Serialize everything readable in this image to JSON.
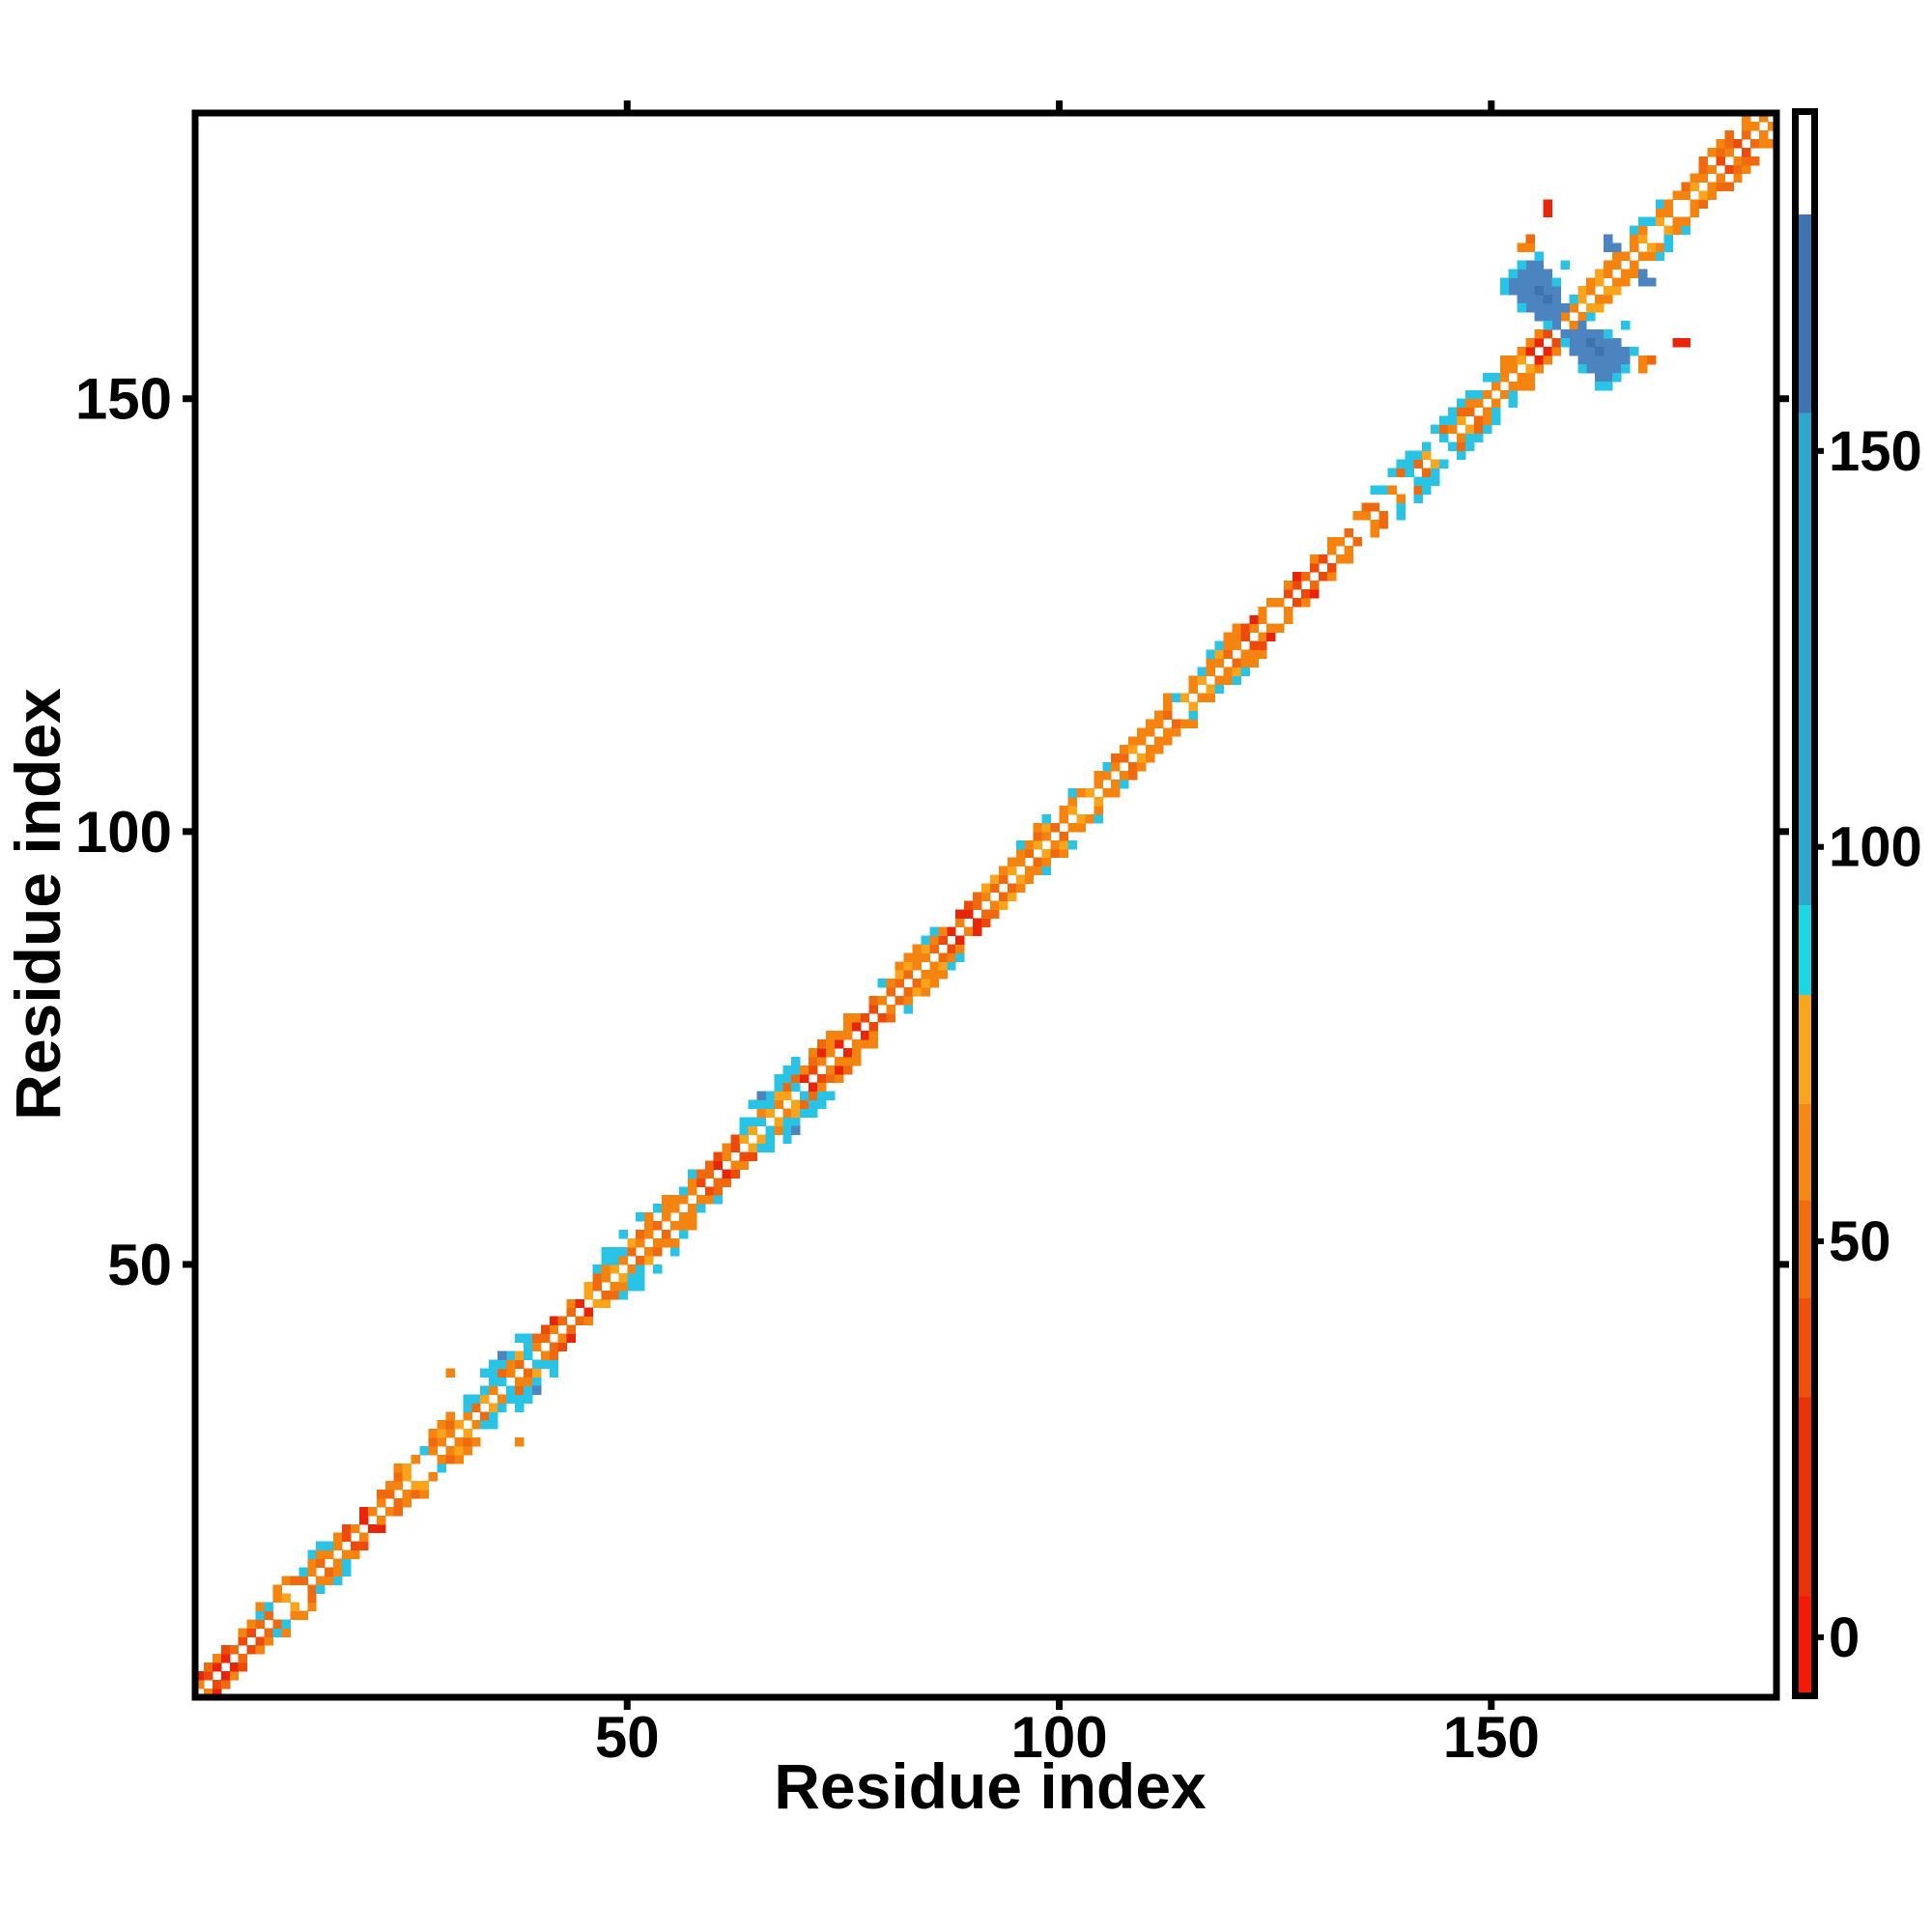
{
  "page": {
    "background": "#FFFFFF"
  },
  "chart_data": {
    "type": "heatmap",
    "title": "",
    "xlabel": "Residue index",
    "ylabel": "Residue index",
    "x_range": [
      0,
      183
    ],
    "y_range": [
      0,
      183
    ],
    "x_ticks": [
      50,
      100,
      150
    ],
    "y_ticks": [
      50,
      100,
      150
    ],
    "grid": false,
    "legend_position": "none",
    "description": "Protein residue contact map: contacts form a band along the main diagonal (|i-j| <= 4) with white holes on the exact diagonal; cells colored by a residue-index colormap (red/orange for low values, cyan/teal mid, steel blue high, white highest). A steel-blue antiparallel hairpin cross feature sits near residues 153-166, with symmetric red/orange off-diagonal contacts near (157,172), (154,168) and an isolated orange pair near (30,38).",
    "palette": {
      "orange": "#F5830F",
      "orangeDeep": "#EF690E",
      "orangeLight": "#F9A41A",
      "orangeRed": "#EC4A0B",
      "red": "#E82509",
      "cyan": "#29C4E5",
      "steel": "#4C84BF",
      "steelDark": "#3E72B0",
      "white": "#FFFFFF"
    },
    "themes": {
      "OR": {
        "w": 2,
        "inner": [
          "orange",
          "orange",
          "orangeDeep",
          "red",
          "orangeRed"
        ],
        "outer": [
          "orange",
          "orangeDeep",
          "cyan"
        ]
      },
      "OC": {
        "w": 3,
        "inner": [
          "orange",
          "orange",
          "orangeLight",
          "orangeDeep"
        ],
        "outer": [
          "cyan",
          "orange",
          "cyan",
          "orangeLight"
        ]
      },
      "CY": {
        "w": 4,
        "inner": [
          "orange",
          "orangeDeep",
          "orangeLight",
          "cyan"
        ],
        "outer": [
          "cyan",
          "cyan",
          "cyan",
          "orange"
        ]
      },
      "RD": {
        "w": 2,
        "inner": [
          "red",
          "red",
          "orangeRed",
          "orange"
        ],
        "outer": [
          "red",
          "orange",
          "cyan"
        ]
      }
    },
    "band_segments": [
      {
        "from": 1,
        "to": 7,
        "theme": "OR"
      },
      {
        "from": 8,
        "to": 16,
        "theme": "OC"
      },
      {
        "from": 17,
        "to": 22,
        "theme": "OR"
      },
      {
        "from": 23,
        "to": 31,
        "theme": "OC"
      },
      {
        "from": 32,
        "to": 39,
        "theme": "CY"
      },
      {
        "from": 40,
        "to": 45,
        "theme": "OR"
      },
      {
        "from": 46,
        "to": 52,
        "theme": "CY"
      },
      {
        "from": 53,
        "to": 58,
        "theme": "OC"
      },
      {
        "from": 59,
        "to": 63,
        "theme": "OR"
      },
      {
        "from": 64,
        "to": 70,
        "theme": "CY"
      },
      {
        "from": 71,
        "to": 79,
        "theme": "OR",
        "w": 3
      },
      {
        "from": 80,
        "to": 86,
        "theme": "OC"
      },
      {
        "from": 87,
        "to": 91,
        "theme": "OR"
      },
      {
        "from": 92,
        "to": 102,
        "theme": "OC"
      },
      {
        "from": 103,
        "to": 112,
        "theme": "OC",
        "w": 2
      },
      {
        "from": 113,
        "to": 121,
        "theme": "OC"
      },
      {
        "from": 122,
        "to": 131,
        "theme": "OR"
      },
      {
        "from": 132,
        "to": 136,
        "theme": "OC",
        "w": 2
      },
      {
        "from": 137,
        "to": 148,
        "theme": "CY",
        "w": 3
      },
      {
        "from": 149,
        "to": 154,
        "theme": "OC"
      },
      {
        "from": 155,
        "to": 158,
        "theme": "RD"
      },
      {
        "from": 159,
        "to": 166,
        "theme": "OC",
        "w": 2
      },
      {
        "from": 167,
        "to": 174,
        "theme": "OC"
      },
      {
        "from": 175,
        "to": 183,
        "theme": "OR",
        "w": 3
      }
    ],
    "hairpin_blob": {
      "color": "steel",
      "dark_color": "steelDark",
      "fringe_color": "cyan",
      "rows": [
        {
          "j": 166,
          "i0": 155,
          "i1": 156
        },
        {
          "j": 165,
          "i0": 154,
          "i1": 157
        },
        {
          "j": 164,
          "i0": 153,
          "i1": 158
        },
        {
          "j": 163,
          "i0": 153,
          "i1": 158
        },
        {
          "j": 162,
          "i0": 154,
          "i1": 158
        },
        {
          "j": 161,
          "i0": 155,
          "i1": 159
        },
        {
          "j": 160,
          "i0": 156,
          "i1": 158
        },
        {
          "j": 159,
          "i0": 157,
          "i1": 158
        }
      ],
      "dark": [
        [
          156,
          163
        ],
        [
          157,
          162
        ]
      ],
      "fringe": [
        [
          152,
          163
        ],
        [
          152,
          164
        ],
        [
          153,
          165
        ],
        [
          154,
          166
        ],
        [
          156,
          167
        ],
        [
          158,
          164
        ],
        [
          154,
          161
        ],
        [
          157,
          159
        ],
        [
          159,
          166
        ]
      ]
    },
    "outliers": [
      {
        "i": 30,
        "j": 38,
        "color": "orange"
      },
      {
        "i": 38,
        "j": 30,
        "color": "orange"
      },
      {
        "i": 154,
        "j": 168,
        "color": "orange"
      },
      {
        "i": 155,
        "j": 168,
        "color": "orange"
      },
      {
        "i": 155,
        "j": 169,
        "color": "orangeDeep"
      },
      {
        "i": 168,
        "j": 154,
        "color": "orange"
      },
      {
        "i": 168,
        "j": 155,
        "color": "orange"
      },
      {
        "i": 169,
        "j": 155,
        "color": "orangeDeep"
      },
      {
        "i": 157,
        "j": 172,
        "color": "red"
      },
      {
        "i": 157,
        "j": 173,
        "color": "red"
      },
      {
        "i": 172,
        "j": 157,
        "color": "red"
      },
      {
        "i": 173,
        "j": 157,
        "color": "red"
      },
      {
        "i": 164,
        "j": 168,
        "color": "steel"
      },
      {
        "i": 165,
        "j": 168,
        "color": "steel"
      },
      {
        "i": 164,
        "j": 169,
        "color": "steel"
      },
      {
        "i": 168,
        "j": 164,
        "color": "steel"
      },
      {
        "i": 168,
        "j": 165,
        "color": "steel"
      },
      {
        "i": 169,
        "j": 164,
        "color": "steel"
      },
      {
        "i": 36,
        "j": 40,
        "color": "steel"
      },
      {
        "i": 40,
        "j": 36,
        "color": "steel"
      },
      {
        "i": 66,
        "j": 70,
        "color": "steel"
      },
      {
        "i": 70,
        "j": 66,
        "color": "steel"
      }
    ],
    "colorbar": {
      "tick_labels": [
        "0",
        "50",
        "100",
        "150"
      ],
      "ticks": [
        {
          "value": 0,
          "frac": 0.965
        },
        {
          "value": 50,
          "frac": 0.714
        },
        {
          "value": 100,
          "frac": 0.464
        },
        {
          "value": 150,
          "frac": 0.213
        }
      ],
      "segments": [
        {
          "color": "#FFFFFF",
          "to": 0.063
        },
        {
          "color": "#3E72B0",
          "to": 0.189
        },
        {
          "color": "#2EA7CB",
          "to": 0.501
        },
        {
          "color": "#1CD7E2",
          "to": 0.558
        },
        {
          "color": "#F6A51F",
          "to": 0.627
        },
        {
          "color": "#F28A15",
          "to": 0.688
        },
        {
          "color": "#EF6E10",
          "to": 0.75
        },
        {
          "color": "#EC520C",
          "to": 0.813
        },
        {
          "color": "#E93209",
          "to": 0.939
        },
        {
          "color": "#F31A07",
          "to": 1.0
        }
      ]
    }
  }
}
